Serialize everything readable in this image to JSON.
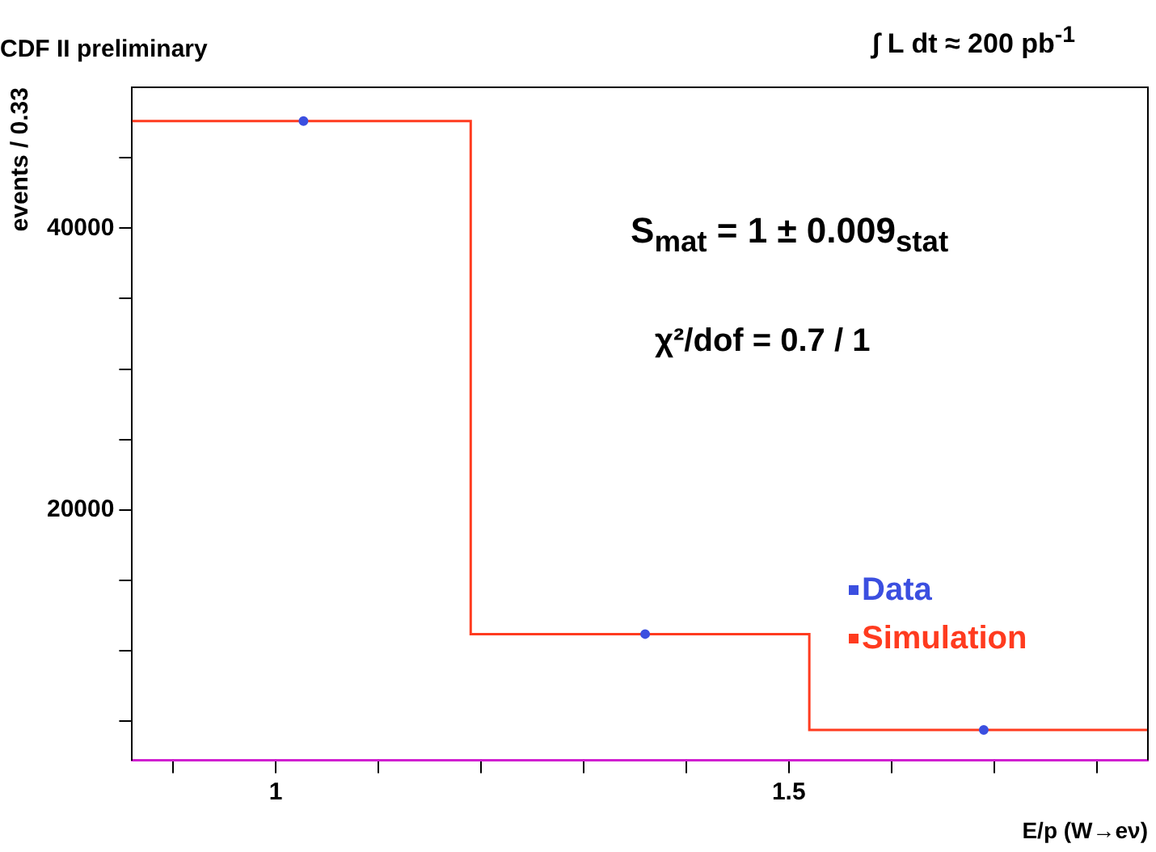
{
  "chart_data": {
    "type": "histogram",
    "title": "CDF II preliminary",
    "xlabel": "E/p (W→eν)",
    "ylabel": "events / 0.33",
    "annotations": [
      "∫ L dt ≈ 200 pb$^{-1}$",
      "S$_{mat}$ = 1 ± 0.009$_{stat}$",
      "χ²/dof = 0.7 / 1"
    ],
    "bins": [
      0.86,
      1.19,
      1.52,
      1.85
    ],
    "series": [
      {
        "name": "Data",
        "type": "scatter",
        "color": "#3b4fe0",
        "x": [
          1.027,
          1.36,
          1.69
        ],
        "values": [
          47600,
          11200,
          4400
        ]
      },
      {
        "name": "Simulation",
        "color": "#ff3b1f",
        "values": [
          47600,
          11200,
          4400
        ]
      }
    ],
    "xlim": [
      0.86,
      1.85
    ],
    "xticks": [
      {
        "value": 0.9,
        "label": null
      },
      1,
      {
        "value": 1.1,
        "label": null
      },
      {
        "value": 1.2,
        "label": null
      },
      {
        "value": 1.3,
        "label": null
      },
      {
        "value": 1.4,
        "label": null
      },
      1.5,
      {
        "value": 1.6,
        "label": null
      },
      {
        "value": 1.7,
        "label": null
      },
      {
        "value": 1.8,
        "label": null
      }
    ],
    "ylim": [
      2250,
      50000
    ],
    "yticks": [
      {
        "value": 5000,
        "label": null
      },
      {
        "value": 10000,
        "label": null
      },
      {
        "value": 15000,
        "label": null
      },
      20000,
      {
        "value": 25000,
        "label": null
      },
      {
        "value": 30000,
        "label": null
      },
      {
        "value": 35000,
        "label": null
      },
      40000,
      {
        "value": 45000,
        "label": null
      }
    ],
    "grid": false,
    "legend": "right",
    "marker": "circle"
  }
}
